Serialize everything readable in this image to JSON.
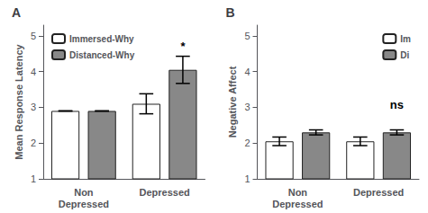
{
  "chart_data": [
    {
      "type": "bar",
      "title": "A",
      "ylabel": "Mean Response Latency",
      "categories": [
        "Non\nDepressed",
        "Depressed"
      ],
      "series": [
        {
          "name": "Immersed-Why",
          "color": "#ffffff",
          "values": [
            2.9,
            3.1
          ],
          "errors": [
            0.0,
            0.28
          ]
        },
        {
          "name": "Distanced-Why",
          "color": "#888888",
          "values": [
            2.9,
            4.05
          ],
          "errors": [
            0.0,
            0.38
          ]
        }
      ],
      "ylim": [
        1,
        5.3
      ],
      "yticks": [
        1,
        2,
        3,
        4,
        5
      ],
      "grid": false,
      "legend": "upper left",
      "annotations": [
        {
          "text": "*",
          "category": "Depressed",
          "series": "Distanced-Why",
          "y": 4.55
        }
      ]
    },
    {
      "type": "bar",
      "title": "B",
      "ylabel": "Negative Affect",
      "categories": [
        "Non\nDepressed",
        "Depressed"
      ],
      "series": [
        {
          "name": "Im",
          "color": "#ffffff",
          "values": [
            2.05,
            2.05
          ],
          "errors": [
            0.12,
            0.12
          ]
        },
        {
          "name": "Di",
          "color": "#888888",
          "values": [
            2.3,
            2.3
          ],
          "errors": [
            0.07,
            0.07
          ]
        }
      ],
      "ylim": [
        1,
        5.3
      ],
      "yticks": [
        1,
        2,
        3,
        4,
        5
      ],
      "grid": false,
      "legend": "upper right",
      "annotations": [
        {
          "text": "ns",
          "category": "Depressed",
          "series": "Di",
          "y": 2.9
        }
      ]
    }
  ]
}
